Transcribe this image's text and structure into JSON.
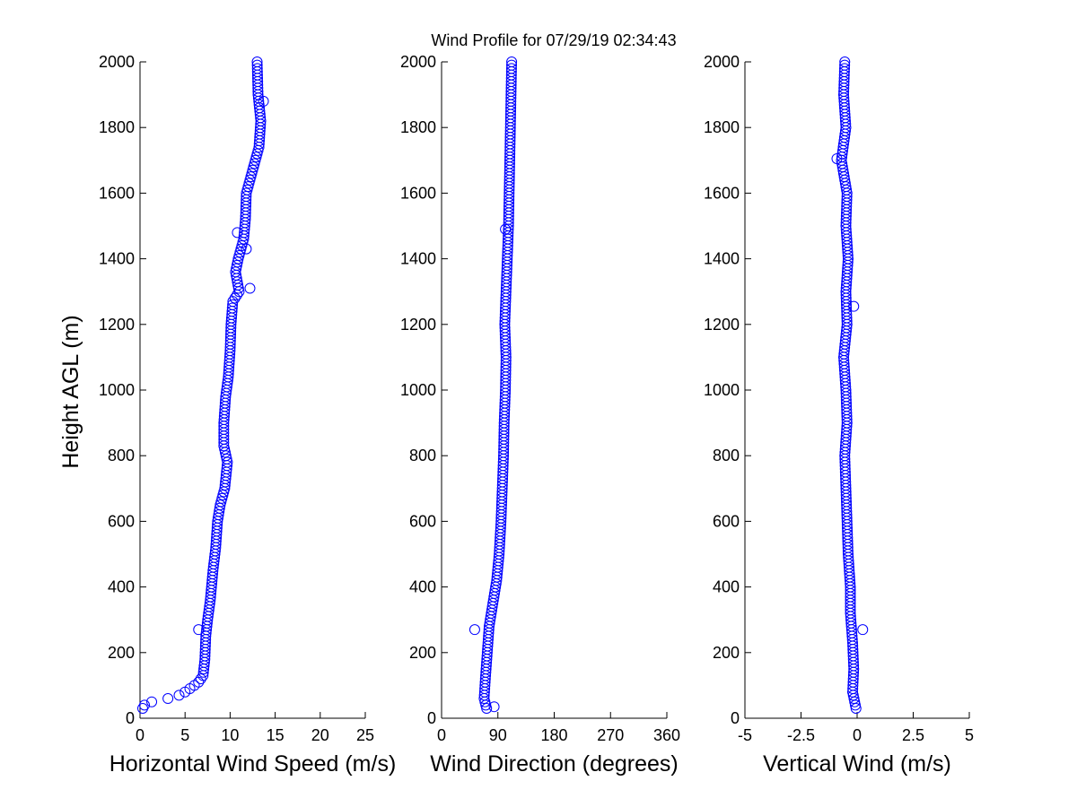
{
  "title": "Wind Profile for  07/29/19 02:34:43",
  "ylabel": "Height AGL (m)",
  "colors": {
    "marker": "#0000ff",
    "axis": "#000000",
    "background": "#ffffff"
  },
  "chart_data": [
    {
      "type": "scatter",
      "xlabel": "Horizontal Wind Speed (m/s)",
      "ylabel": "Height AGL (m)",
      "xlim": [
        0,
        25
      ],
      "ylim": [
        0,
        2000
      ],
      "xticks": [
        "0",
        "5",
        "10",
        "15",
        "20",
        "25"
      ],
      "yticks": [
        "0",
        "200",
        "400",
        "600",
        "800",
        "1000",
        "1200",
        "1400",
        "1600",
        "1800",
        "2000"
      ],
      "grid": false,
      "marker": "open-circle",
      "anchors": [
        [
          0.3,
          30
        ],
        [
          0.5,
          40
        ],
        [
          1.3,
          50
        ],
        [
          2.2,
          55
        ],
        [
          4,
          65
        ],
        [
          5,
          80
        ],
        [
          5.8,
          95
        ],
        [
          6.5,
          110
        ],
        [
          7,
          130
        ],
        [
          7.2,
          180
        ],
        [
          7.3,
          250
        ],
        [
          7.5,
          300
        ],
        [
          7.8,
          360
        ],
        [
          8.1,
          450
        ],
        [
          8.4,
          520
        ],
        [
          8.6,
          600
        ],
        [
          8.9,
          650
        ],
        [
          9.4,
          700
        ],
        [
          9.7,
          780
        ],
        [
          9.3,
          830
        ],
        [
          9.3,
          900
        ],
        [
          9.5,
          980
        ],
        [
          9.8,
          1040
        ],
        [
          10,
          1120
        ],
        [
          10.1,
          1200
        ],
        [
          10.3,
          1270
        ],
        [
          11,
          1300
        ],
        [
          10.6,
          1360
        ],
        [
          10.9,
          1400
        ],
        [
          11.5,
          1460
        ],
        [
          11.7,
          1520
        ],
        [
          11.8,
          1600
        ],
        [
          12.5,
          1670
        ],
        [
          13.2,
          1740
        ],
        [
          13.4,
          1820
        ],
        [
          13.1,
          1900
        ],
        [
          13,
          2000
        ]
      ],
      "outliers": [
        [
          6.5,
          270
        ],
        [
          12.2,
          1310
        ],
        [
          11.8,
          1430
        ],
        [
          10.8,
          1480
        ],
        [
          13.7,
          1880
        ]
      ]
    },
    {
      "type": "scatter",
      "xlabel": "Wind Direction (degrees)",
      "ylabel": "",
      "xlim": [
        0,
        360
      ],
      "ylim": [
        0,
        2000
      ],
      "xticks": [
        "0",
        "90",
        "180",
        "270",
        "360"
      ],
      "yticks": [
        "0",
        "200",
        "400",
        "600",
        "800",
        "1000",
        "1200",
        "1400",
        "1600",
        "1800",
        "2000"
      ],
      "grid": false,
      "marker": "open-circle",
      "anchors": [
        [
          72,
          30
        ],
        [
          68,
          60
        ],
        [
          70,
          120
        ],
        [
          73,
          200
        ],
        [
          76,
          280
        ],
        [
          82,
          350
        ],
        [
          88,
          420
        ],
        [
          92,
          500
        ],
        [
          95,
          600
        ],
        [
          97,
          700
        ],
        [
          99,
          800
        ],
        [
          100,
          900
        ],
        [
          102,
          1000
        ],
        [
          103,
          1100
        ],
        [
          101,
          1200
        ],
        [
          103,
          1300
        ],
        [
          105,
          1400
        ],
        [
          107,
          1500
        ],
        [
          108,
          1600
        ],
        [
          109,
          1700
        ],
        [
          110,
          1800
        ],
        [
          111,
          1900
        ],
        [
          112,
          2000
        ]
      ],
      "outliers": [
        [
          53,
          270
        ],
        [
          84,
          35
        ],
        [
          102,
          1490
        ]
      ]
    },
    {
      "type": "scatter",
      "xlabel": "Vertical Wind (m/s)",
      "ylabel": "",
      "xlim": [
        -5,
        5
      ],
      "ylim": [
        0,
        2000
      ],
      "xticks": [
        "-5",
        "-2.5",
        "0",
        "2.5",
        "5"
      ],
      "yticks": [
        "0",
        "200",
        "400",
        "600",
        "800",
        "1000",
        "1200",
        "1400",
        "1600",
        "1800",
        "2000"
      ],
      "grid": false,
      "marker": "open-circle",
      "anchors": [
        [
          -0.05,
          30
        ],
        [
          -0.2,
          80
        ],
        [
          -0.15,
          150
        ],
        [
          -0.2,
          230
        ],
        [
          -0.3,
          320
        ],
        [
          -0.3,
          400
        ],
        [
          -0.4,
          500
        ],
        [
          -0.45,
          600
        ],
        [
          -0.5,
          700
        ],
        [
          -0.55,
          800
        ],
        [
          -0.45,
          900
        ],
        [
          -0.5,
          1000
        ],
        [
          -0.6,
          1100
        ],
        [
          -0.45,
          1200
        ],
        [
          -0.5,
          1300
        ],
        [
          -0.4,
          1400
        ],
        [
          -0.5,
          1500
        ],
        [
          -0.45,
          1600
        ],
        [
          -0.7,
          1700
        ],
        [
          -0.5,
          1800
        ],
        [
          -0.6,
          1900
        ],
        [
          -0.55,
          2000
        ]
      ],
      "outliers": [
        [
          0.25,
          270
        ],
        [
          -0.15,
          1255
        ],
        [
          -0.9,
          1705
        ]
      ]
    }
  ]
}
